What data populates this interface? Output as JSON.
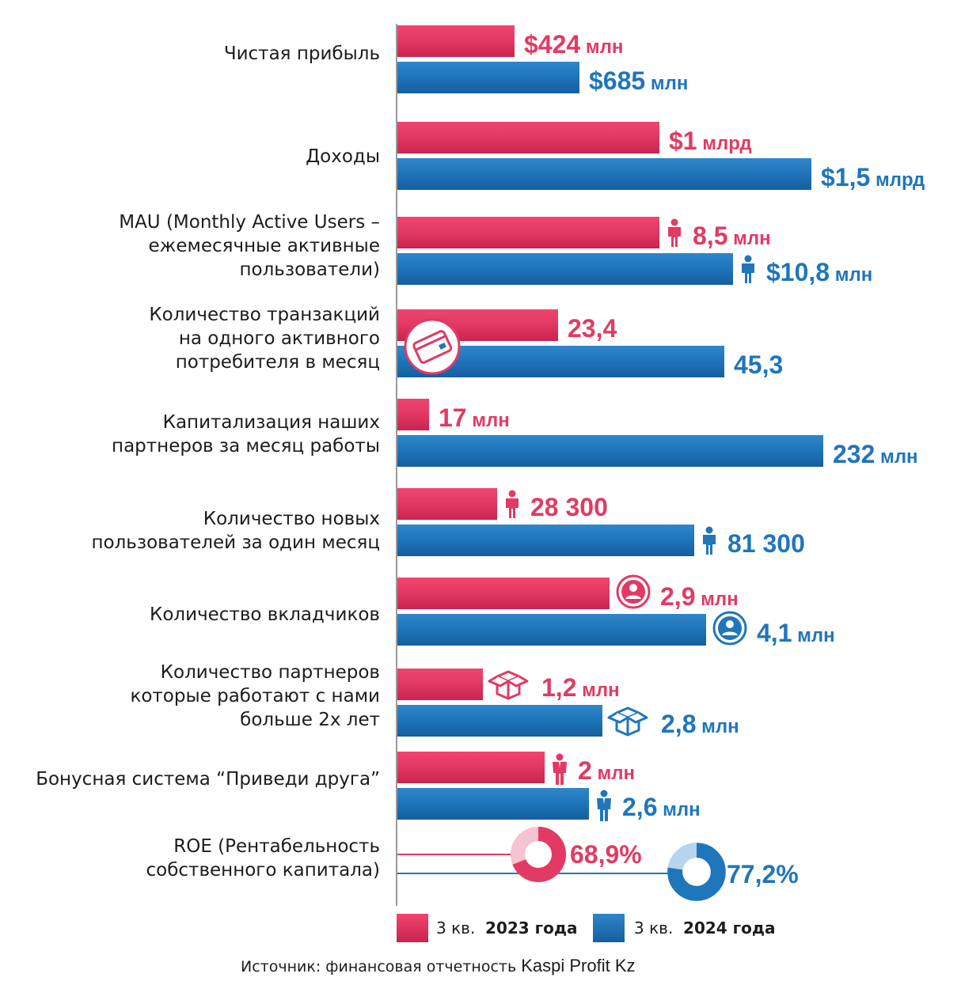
{
  "chart_data": {
    "type": "bar",
    "orientation": "horizontal",
    "categories": [
      {
        "label": "Чистая прибыль",
        "v2023": "$424",
        "u2023": "млн",
        "v2024": "$685",
        "u2024": "млн",
        "icon": "none"
      },
      {
        "label": "Доходы",
        "v2023": "$1",
        "u2023": "млрд",
        "v2024": "$1,5",
        "u2024": "млрд",
        "icon": "none"
      },
      {
        "label": "MAU (Monthly Active Users –\nежемесячные активные\nпользователи)",
        "v2023": "8,5",
        "u2023": "млн",
        "v2024": "$10,8",
        "u2024": "млн",
        "icon": "person-icon"
      },
      {
        "label": "Количество транзакций\nна одного активного\nпотребителя в месяц",
        "v2023": "23,4",
        "u2023": "",
        "v2024": "45,3",
        "u2024": "",
        "icon": "card-icon"
      },
      {
        "label": "Капитализация наших\nпартнеров за месяц работы",
        "v2023": "17",
        "u2023": "млн",
        "v2024": "232",
        "u2024": "млн",
        "icon": "none"
      },
      {
        "label": "Количество новых\nпользователей за один месяц",
        "v2023": "28 300",
        "u2023": "",
        "v2024": "81 300",
        "u2024": "",
        "icon": "person-icon"
      },
      {
        "label": "Количество вкладчиков",
        "v2023": "2,9",
        "u2023": "млн",
        "v2024": "4,1",
        "u2024": "млн",
        "icon": "user-circle-icon"
      },
      {
        "label": "Количество партнеров\nкоторые работают с нами\nбольше 2х лет ",
        "v2023": "1,2",
        "u2023": "млн",
        "v2024": "2,8",
        "u2024": "млн",
        "icon": "box-icon"
      },
      {
        "label": "Бонусная система “Приведи друга”",
        "v2023": "2",
        "u2023": "млн",
        "v2024": "2,6",
        "u2024": "млн",
        "icon": "businessman-icon"
      },
      {
        "label": "ROE (Рентабельность\nсобственного капитала)",
        "v2023": "68,9%",
        "u2023": "",
        "v2024": "77,2%",
        "u2024": "",
        "icon": "donut"
      }
    ],
    "series": [
      {
        "name": "3 кв. 2023 года",
        "legend_prefix": "3 кв.",
        "legend_bold": "2023 года",
        "color": "#e23a64",
        "values": [
          424,
          1,
          8.5,
          23.4,
          17,
          28300,
          2.9,
          1.2,
          2,
          68.9
        ]
      },
      {
        "name": "3 кв. 2024 года",
        "legend_prefix": "3 кв.",
        "legend_bold": "2024 года",
        "color": "#1f76bb",
        "values": [
          685,
          1.5,
          10.8,
          45.3,
          232,
          81300,
          4.1,
          2.8,
          2.6,
          77.2
        ]
      }
    ],
    "legend_position": "bottom",
    "grid": false
  },
  "source": {
    "label": "Источник:  финансовая отчетность",
    "brand": "Kaspi Profit Kz"
  }
}
